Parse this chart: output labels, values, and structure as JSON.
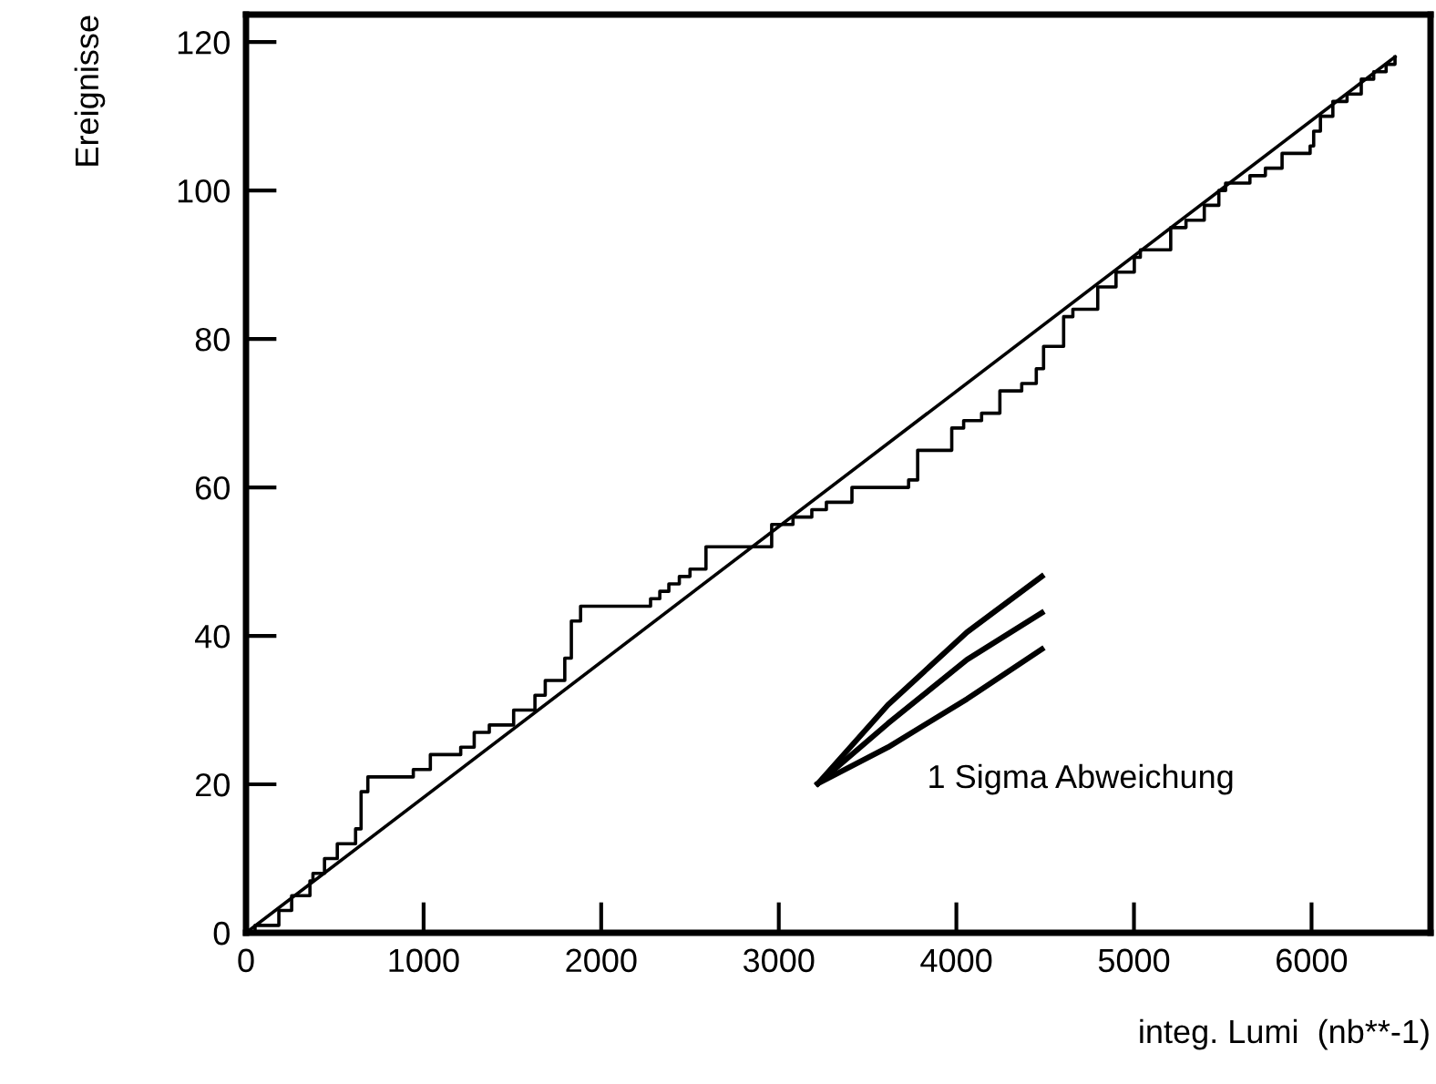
{
  "chart_data": {
    "type": "line",
    "xlabel": "integ. Lumi  (nb**-1)",
    "ylabel": "Ereignisse",
    "xlim": [
      0,
      6670
    ],
    "ylim": [
      0,
      123.7
    ],
    "xticks": [
      0,
      1000,
      2000,
      3000,
      4000,
      5000,
      6000
    ],
    "yticks": [
      0,
      20,
      40,
      60,
      80,
      100,
      120
    ],
    "grid": false,
    "legend": false,
    "marker": "none",
    "line_style": "solid",
    "annotations": [
      "1 Sigma Abweichung"
    ],
    "series": [
      {
        "type": "step",
        "color": "#000000",
        "x": [
          0,
          51,
          185,
          257,
          360,
          377,
          442,
          514,
          617,
          648,
          686,
          942,
          1038,
          1209,
          1285,
          1370,
          1507,
          1627,
          1685,
          1795,
          1832,
          1884,
          1935,
          2278,
          2330,
          2381,
          2440,
          2500,
          2590,
          2929,
          2960,
          3080,
          3186,
          3268,
          3412,
          3731,
          3782,
          3974,
          4041,
          4142,
          4245,
          4368,
          4450,
          4491,
          4604,
          4656,
          4796,
          4899,
          5002,
          5036,
          5207,
          5293,
          5396,
          5478,
          5516,
          5653,
          5740,
          5834,
          5992,
          6012,
          6050,
          6120,
          6200,
          6280,
          6350,
          6420,
          6470
        ],
        "values": [
          0,
          1,
          3,
          5,
          7,
          8,
          10,
          12,
          14,
          19,
          21,
          22,
          24,
          25,
          27,
          28,
          30,
          32,
          34,
          37,
          42,
          44,
          44,
          45,
          46,
          47,
          48,
          49,
          52,
          52,
          55,
          56,
          57,
          58,
          60,
          61,
          65,
          68,
          69,
          70,
          73,
          74,
          76,
          79,
          83,
          84,
          87,
          89,
          91,
          92,
          95,
          96,
          98,
          100,
          101,
          102,
          103,
          105,
          106,
          108,
          110,
          112,
          113,
          115,
          116,
          117,
          118
        ]
      },
      {
        "color": "#000000",
        "x": [
          0,
          6470
        ],
        "values": [
          0,
          118
        ]
      },
      {
        "color": "#000000",
        "x": [
          3220,
          3615,
          4060,
          4481
        ],
        "values": [
          20.1,
          30.7,
          40.5,
          48
        ]
      },
      {
        "color": "#000000",
        "x": [
          3220,
          3615,
          4060,
          4481
        ],
        "values": [
          20.1,
          28.2,
          36.8,
          43.1
        ]
      },
      {
        "color": "#000000",
        "x": [
          3220,
          3615,
          4060,
          4481
        ],
        "values": [
          20.1,
          25,
          31.5,
          38.2
        ]
      }
    ]
  }
}
